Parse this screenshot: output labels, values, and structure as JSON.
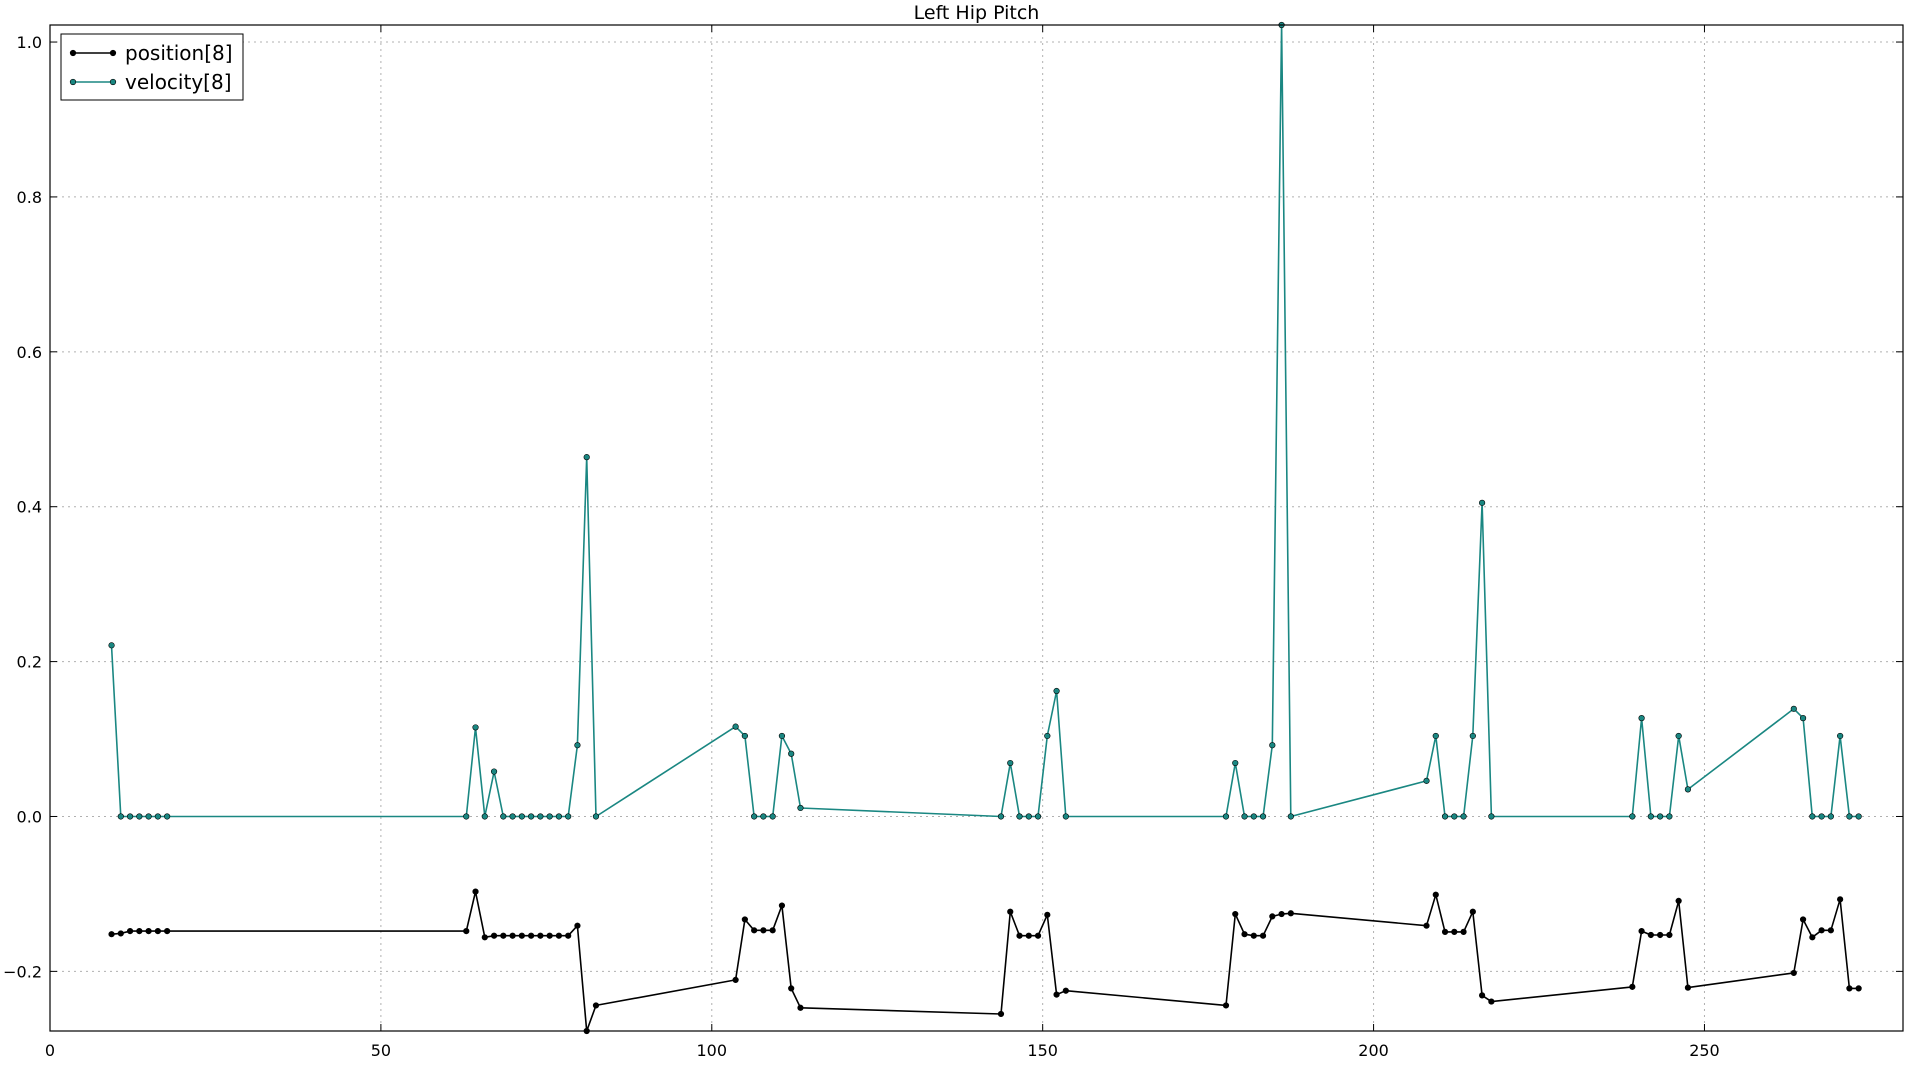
{
  "chart_data": {
    "type": "line",
    "title": "Left Hip Pitch",
    "xlabel": "",
    "ylabel": "",
    "xlim": [
      0,
      280
    ],
    "ylim": [
      -0.277,
      1.022
    ],
    "xticks": [
      0,
      50,
      100,
      150,
      200,
      250
    ],
    "yticks": [
      -0.2,
      0.0,
      0.2,
      0.4,
      0.6,
      0.8,
      1.0
    ],
    "xtick_labels": [
      "0",
      "50",
      "100",
      "150",
      "200",
      "250"
    ],
    "ytick_labels": [
      "−0.2",
      "0.0",
      "0.2",
      "0.4",
      "0.6",
      "0.8",
      "1.0"
    ],
    "grid": true,
    "legend_position": "top-left",
    "series": [
      {
        "name": "position[8]",
        "color": "#000000",
        "x": [
          9.3,
          10.7,
          12.1,
          13.5,
          14.9,
          16.3,
          17.7,
          62.9,
          64.3,
          65.7,
          67.1,
          68.5,
          69.9,
          71.3,
          72.7,
          74.1,
          75.5,
          76.9,
          78.3,
          79.7,
          81.1,
          82.5,
          103.6,
          105.0,
          106.4,
          107.8,
          109.2,
          110.6,
          112.0,
          113.4,
          143.7,
          145.1,
          146.5,
          147.9,
          149.3,
          150.7,
          152.1,
          153.5,
          177.7,
          179.1,
          180.5,
          181.9,
          183.3,
          184.7,
          186.1,
          187.5,
          208.0,
          209.4,
          210.8,
          212.2,
          213.6,
          215.0,
          216.4,
          217.8,
          239.1,
          240.5,
          241.9,
          243.3,
          244.7,
          246.1,
          247.5,
          263.5,
          264.9,
          266.3,
          267.7,
          269.1,
          270.5,
          271.9,
          273.3
        ],
        "y": [
          -0.152,
          -0.151,
          -0.148,
          -0.148,
          -0.148,
          -0.148,
          -0.148,
          -0.148,
          -0.097,
          -0.156,
          -0.154,
          -0.154,
          -0.154,
          -0.154,
          -0.154,
          -0.154,
          -0.154,
          -0.154,
          -0.154,
          -0.141,
          -0.277,
          -0.244,
          -0.211,
          -0.133,
          -0.147,
          -0.147,
          -0.147,
          -0.115,
          -0.222,
          -0.247,
          -0.255,
          -0.123,
          -0.154,
          -0.154,
          -0.154,
          -0.127,
          -0.23,
          -0.225,
          -0.244,
          -0.126,
          -0.152,
          -0.154,
          -0.154,
          -0.129,
          -0.126,
          -0.125,
          -0.141,
          -0.101,
          -0.149,
          -0.149,
          -0.149,
          -0.123,
          -0.231,
          -0.239,
          -0.22,
          -0.148,
          -0.153,
          -0.153,
          -0.153,
          -0.109,
          -0.221,
          -0.202,
          -0.133,
          -0.156,
          -0.147,
          -0.147,
          -0.107,
          -0.222,
          -0.222
        ]
      },
      {
        "name": "velocity[8]",
        "color": "#1a8782",
        "x": [
          9.3,
          10.7,
          12.1,
          13.5,
          14.9,
          16.3,
          17.7,
          62.9,
          64.3,
          65.7,
          67.1,
          68.5,
          69.9,
          71.3,
          72.7,
          74.1,
          75.5,
          76.9,
          78.3,
          79.7,
          81.1,
          82.5,
          103.6,
          105.0,
          106.4,
          107.8,
          109.2,
          110.6,
          112.0,
          113.4,
          143.7,
          145.1,
          146.5,
          147.9,
          149.3,
          150.7,
          152.1,
          153.5,
          177.7,
          179.1,
          180.5,
          181.9,
          183.3,
          184.7,
          186.1,
          187.5,
          208.0,
          209.4,
          210.8,
          212.2,
          213.6,
          215.0,
          216.4,
          217.8,
          239.1,
          240.5,
          241.9,
          243.3,
          244.7,
          246.1,
          247.5,
          263.5,
          264.9,
          266.3,
          267.7,
          269.1,
          270.5,
          271.9,
          273.3
        ],
        "y": [
          0.221,
          0.0,
          0.0,
          0.0,
          0.0,
          0.0,
          0.0,
          0.0,
          0.115,
          0.0,
          0.058,
          0.0,
          0.0,
          0.0,
          0.0,
          0.0,
          0.0,
          0.0,
          0.0,
          0.092,
          0.464,
          0.0,
          0.116,
          0.104,
          0.0,
          0.0,
          0.0,
          0.104,
          0.081,
          0.011,
          0.0,
          0.069,
          0.0,
          0.0,
          0.0,
          0.104,
          0.162,
          0.0,
          0.0,
          0.069,
          0.0,
          0.0,
          0.0,
          0.092,
          1.022,
          0.0,
          0.046,
          0.104,
          0.0,
          0.0,
          0.0,
          0.104,
          0.405,
          0.0,
          0.0,
          0.127,
          0.0,
          0.0,
          0.0,
          0.104,
          0.035,
          0.139,
          0.127,
          0.0,
          0.0,
          0.0,
          0.104,
          0.0,
          0.0
        ]
      }
    ]
  }
}
